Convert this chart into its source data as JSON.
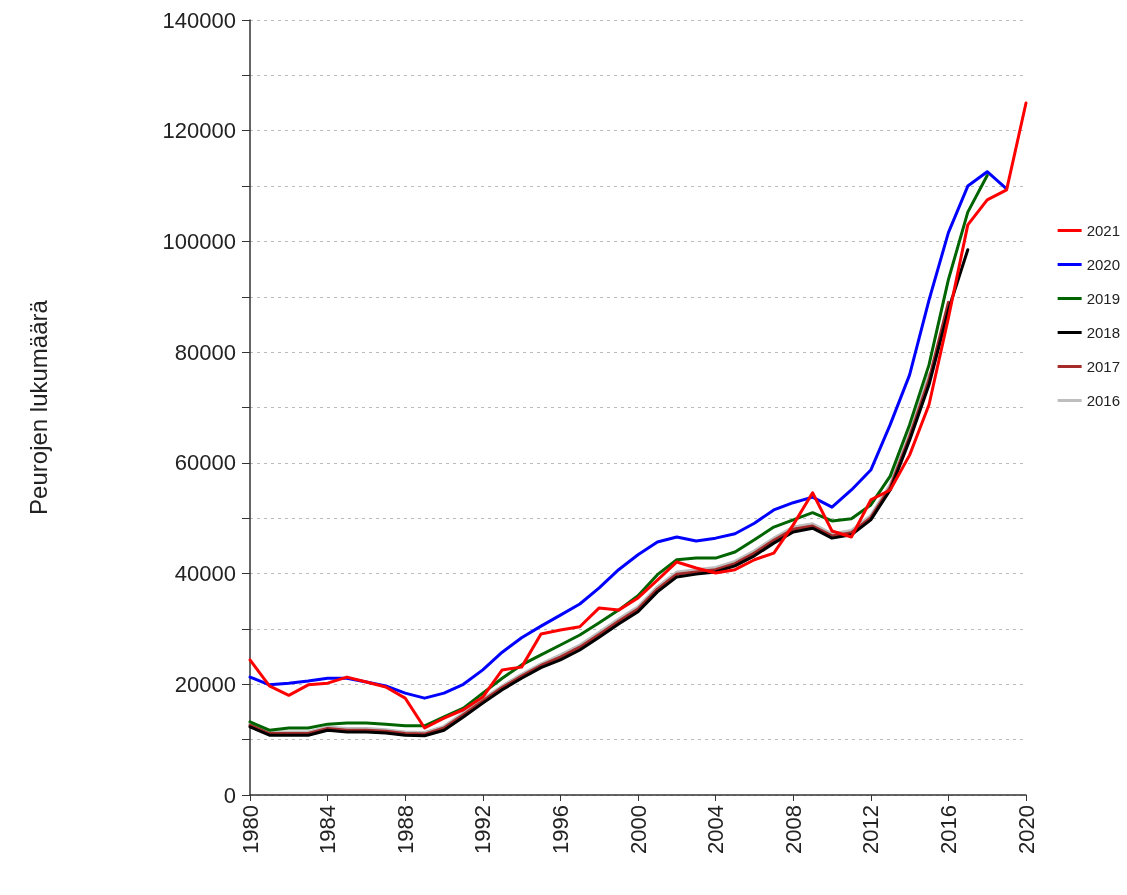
{
  "chart_data": {
    "type": "line",
    "ylabel": "Peurojen lukumäärä",
    "x": [
      1980,
      1981,
      1982,
      1983,
      1984,
      1985,
      1986,
      1987,
      1988,
      1989,
      1990,
      1991,
      1992,
      1993,
      1994,
      1995,
      1996,
      1997,
      1998,
      1999,
      2000,
      2001,
      2002,
      2003,
      2004,
      2005,
      2006,
      2007,
      2008,
      2009,
      2010,
      2011,
      2012,
      2013,
      2014,
      2015,
      2016,
      2017,
      2018,
      2019,
      2020
    ],
    "series": [
      {
        "name": "2021",
        "color": "#ff0000",
        "values": [
          24400,
          19700,
          18000,
          19900,
          20200,
          21300,
          20400,
          19500,
          17500,
          12100,
          13900,
          15400,
          17700,
          22600,
          23100,
          29100,
          29800,
          30400,
          33800,
          33400,
          35600,
          38800,
          42100,
          41000,
          40100,
          40700,
          42500,
          43700,
          48800,
          54600,
          47700,
          46600,
          53300,
          55100,
          61400,
          70500,
          86200,
          103000,
          107500,
          109300,
          125000
        ]
      },
      {
        "name": "2020",
        "color": "#0000ff",
        "values": [
          21300,
          19900,
          20200,
          20600,
          21100,
          21100,
          20400,
          19700,
          18400,
          17500,
          18400,
          20000,
          22600,
          25800,
          28400,
          30500,
          32500,
          34500,
          37400,
          40700,
          43400,
          45700,
          46600,
          45900,
          46400,
          47200,
          49100,
          51500,
          52800,
          53800,
          52000,
          55100,
          58700,
          66900,
          75900,
          89400,
          101600,
          110000,
          112600,
          109500,
          null
        ]
      },
      {
        "name": "2019",
        "color": "#006400",
        "values": [
          13200,
          11700,
          12100,
          12100,
          12800,
          13000,
          13000,
          12800,
          12500,
          12500,
          14100,
          15700,
          18400,
          21100,
          23500,
          25300,
          27100,
          28900,
          31100,
          33400,
          36000,
          39800,
          42500,
          42800,
          42800,
          43900,
          46100,
          48400,
          49700,
          51000,
          49500,
          49900,
          52400,
          57600,
          66900,
          77700,
          93100,
          105300,
          111900,
          null,
          null
        ]
      },
      {
        "name": "2018",
        "color": "#000000",
        "values": [
          12300,
          10800,
          10800,
          10800,
          11700,
          11400,
          11400,
          11200,
          10800,
          10700,
          11700,
          14100,
          16600,
          19000,
          21100,
          23000,
          24400,
          26200,
          28500,
          30900,
          33100,
          36700,
          39400,
          39900,
          40300,
          41400,
          43200,
          45500,
          47500,
          48200,
          46400,
          47000,
          49700,
          55100,
          64100,
          74100,
          87600,
          98500,
          null,
          null,
          null
        ]
      },
      {
        "name": "2017",
        "color": "#a52a2a",
        "values": [
          12600,
          11100,
          11100,
          11100,
          12000,
          11700,
          11700,
          11500,
          11100,
          11000,
          12100,
          14500,
          17000,
          19400,
          21500,
          23400,
          24900,
          26700,
          29000,
          31400,
          33600,
          37200,
          39900,
          40300,
          40700,
          41800,
          43700,
          46000,
          48000,
          48600,
          46800,
          47400,
          50100,
          55600,
          64700,
          75000,
          89000,
          null,
          null,
          null,
          null
        ]
      },
      {
        "name": "2016",
        "color": "#bebebe",
        "values": [
          12900,
          11400,
          11400,
          11400,
          12300,
          12000,
          12000,
          11800,
          11400,
          11300,
          12400,
          14800,
          17300,
          19700,
          21800,
          23700,
          25300,
          27100,
          29400,
          31800,
          34000,
          37600,
          40300,
          40700,
          41100,
          42200,
          44100,
          46400,
          48400,
          49000,
          47200,
          47800,
          50500,
          56100,
          65300,
          76000,
          null,
          null,
          null,
          null,
          null
        ]
      }
    ],
    "xlim": [
      1980,
      2020
    ],
    "xticks": [
      1980,
      1984,
      1988,
      1992,
      1996,
      2000,
      2004,
      2008,
      2012,
      2016,
      2020
    ],
    "ylim": [
      0,
      140000
    ],
    "yticks": [
      0,
      {
        "value": 10000,
        "label": null
      },
      20000,
      {
        "value": 30000,
        "label": null
      },
      40000,
      {
        "value": 50000,
        "label": null
      },
      60000,
      {
        "value": 70000,
        "label": null
      },
      80000,
      {
        "value": 90000,
        "label": null
      },
      100000,
      {
        "value": 110000,
        "label": null
      },
      120000,
      {
        "value": 130000,
        "label": null
      },
      140000
    ],
    "grid": "y",
    "legend": "right",
    "marker": "none",
    "line_style": "solid"
  }
}
